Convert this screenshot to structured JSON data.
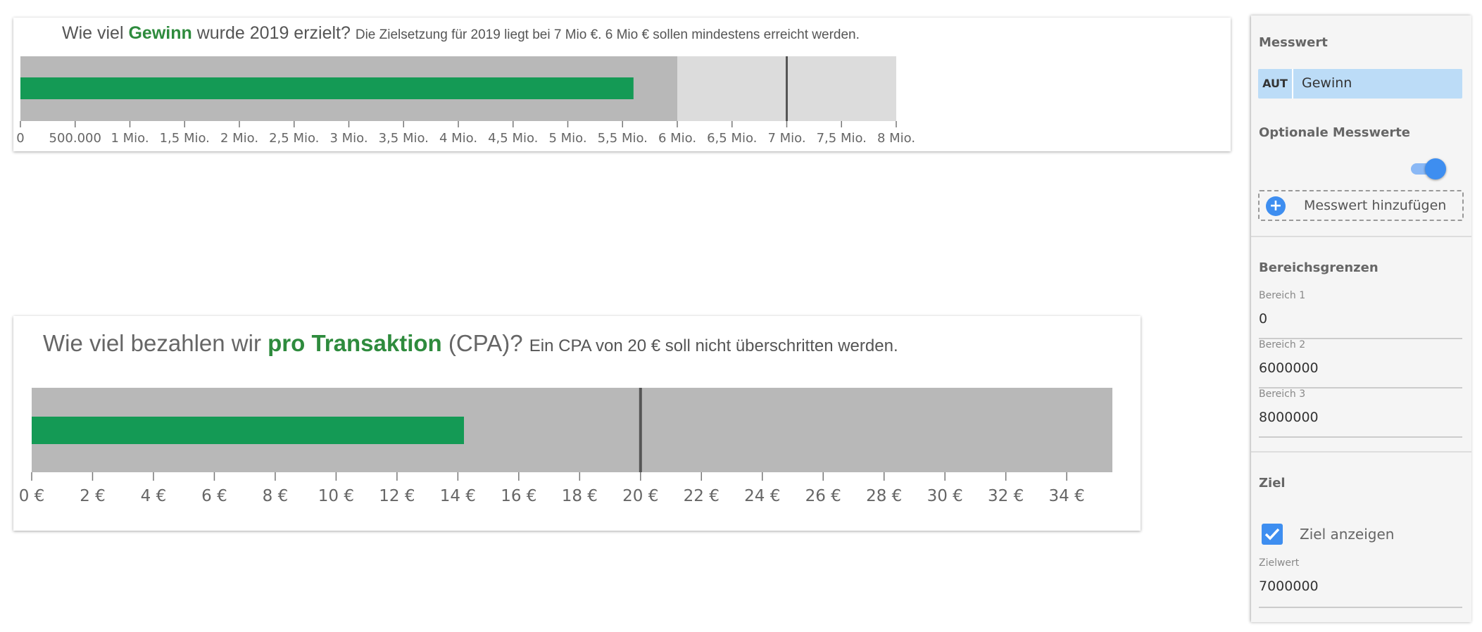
{
  "cards": [
    {
      "title_pre": "Wie viel ",
      "title_hl": "Gewinn",
      "title_post": " wurde 2019 erzielt?",
      "subtitle": "Die Zielsetzung für 2019 liegt bei 7 Mio €. 6 Mio € sollen mindestens erreicht werden."
    },
    {
      "title_pre": "Wie viel bezahlen wir ",
      "title_hl": "pro Transaktion",
      "title_post": " (CPA)?",
      "subtitle": "Ein CPA von 20 € soll nicht überschritten werden."
    }
  ],
  "chart_data": [
    {
      "type": "bullet",
      "value": 5600000,
      "target": 7000000,
      "ranges": [
        6000000,
        8000000
      ],
      "xlim": [
        0,
        8000000
      ],
      "range_colors": [
        "#b8b8b8",
        "#dcdcdc"
      ],
      "bar_color": "#149a55",
      "tick_values": [
        0,
        500000,
        1000000,
        1500000,
        2000000,
        2500000,
        3000000,
        3500000,
        4000000,
        4500000,
        5000000,
        5500000,
        6000000,
        6500000,
        7000000,
        7500000,
        8000000
      ],
      "tick_labels": [
        "0",
        "500.000",
        "1 Mio.",
        "1,5 Mio.",
        "2 Mio.",
        "2,5 Mio.",
        "3 Mio.",
        "3,5 Mio.",
        "4 Mio.",
        "4,5 Mio.",
        "5 Mio.",
        "5,5 Mio.",
        "6 Mio.",
        "6,5 Mio.",
        "7 Mio.",
        "7,5 Mio.",
        "8 Mio."
      ]
    },
    {
      "type": "bullet",
      "value": 14.2,
      "target": 20,
      "ranges": [
        35.5
      ],
      "xlim": [
        0,
        35.5
      ],
      "range_colors": [
        "#b8b8b8"
      ],
      "bar_color": "#149a55",
      "tick_values": [
        0,
        2,
        4,
        6,
        8,
        10,
        12,
        14,
        16,
        18,
        20,
        22,
        24,
        26,
        28,
        30,
        32,
        34
      ],
      "tick_labels": [
        "0 €",
        "2 €",
        "4 €",
        "6 €",
        "8 €",
        "10 €",
        "12 €",
        "14 €",
        "16 €",
        "18 €",
        "20 €",
        "22 €",
        "24 €",
        "26 €",
        "28 €",
        "30 €",
        "32 €",
        "34 €"
      ]
    }
  ],
  "panel": {
    "measure_title": "Messwert",
    "measure_type": "AUT",
    "measure_name": "Gewinn",
    "optional_title": "Optionale Messwerte",
    "optional_toggle_on": true,
    "add_measure_label": "Messwert hinzufügen",
    "ranges_title": "Bereichsgrenzen",
    "range_fields": [
      {
        "label": "Bereich 1",
        "value": "0"
      },
      {
        "label": "Bereich 2",
        "value": "6000000"
      },
      {
        "label": "Bereich 3",
        "value": "8000000"
      }
    ],
    "target_title": "Ziel",
    "show_target_label": "Ziel anzeigen",
    "show_target_checked": true,
    "target_value_label": "Zielwert",
    "target_value": "7000000"
  }
}
